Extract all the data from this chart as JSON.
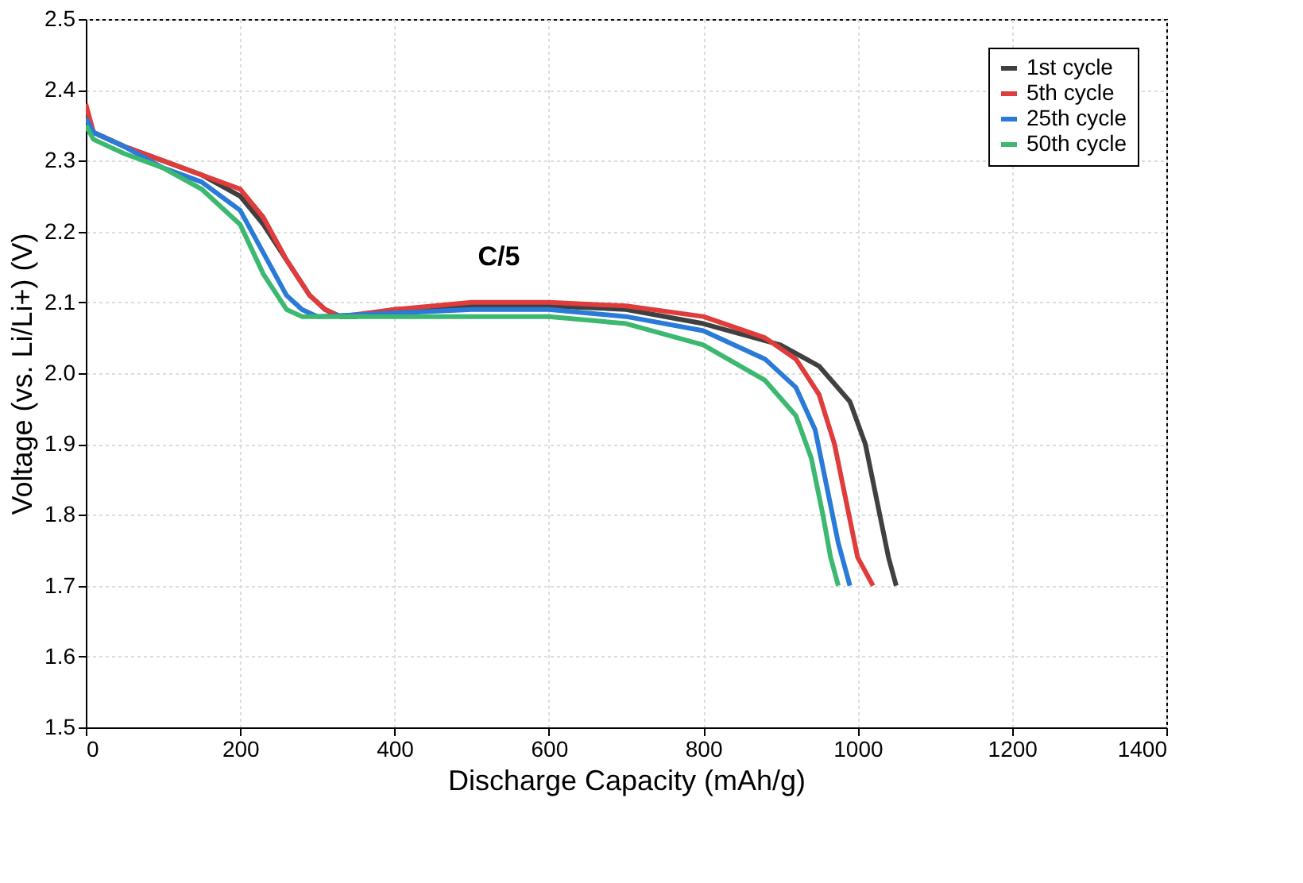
{
  "chart_data": {
    "type": "line",
    "xlabel": "Discharge Capacity (mAh/g)",
    "ylabel": "Voltage (vs. Li/Li+) (V)",
    "xlim": [
      0,
      1400
    ],
    "xticks": [
      0,
      200,
      400,
      600,
      800,
      1000,
      1200,
      1400
    ],
    "ylim": [
      1.5,
      2.5
    ],
    "yticks": [
      1.5,
      1.6,
      1.7,
      1.8,
      1.9,
      {
        "value": 2,
        "label": "2.0"
      },
      2.1,
      2.2,
      2.3,
      2.4,
      2.5
    ],
    "grid": true,
    "legend": "top right",
    "marker": "none",
    "line_style": "solid",
    "annotations": [
      "C/5"
    ],
    "series": [
      {
        "name": "1st cycle",
        "color": "#404040",
        "x": [
          0,
          10,
          50,
          100,
          150,
          200,
          230,
          260,
          290,
          310,
          330,
          350,
          400,
          500,
          600,
          700,
          800,
          900,
          950,
          990,
          1010,
          1025,
          1040,
          1050
        ],
        "values": [
          2.37,
          2.34,
          2.32,
          2.3,
          2.28,
          2.25,
          2.21,
          2.16,
          2.11,
          2.09,
          2.08,
          2.08,
          2.09,
          2.095,
          2.095,
          2.09,
          2.07,
          2.04,
          2.01,
          1.96,
          1.9,
          1.82,
          1.74,
          1.7
        ]
      },
      {
        "name": "5th cycle",
        "color": "#e03c3c",
        "x": [
          0,
          10,
          50,
          100,
          150,
          200,
          230,
          260,
          290,
          310,
          330,
          400,
          500,
          600,
          700,
          800,
          880,
          920,
          950,
          970,
          985,
          1000,
          1020
        ],
        "values": [
          2.38,
          2.34,
          2.32,
          2.3,
          2.28,
          2.26,
          2.22,
          2.16,
          2.11,
          2.09,
          2.08,
          2.09,
          2.1,
          2.1,
          2.095,
          2.08,
          2.05,
          2.02,
          1.97,
          1.9,
          1.82,
          1.74,
          1.7
        ]
      },
      {
        "name": "25th cycle",
        "color": "#2a7ad8",
        "x": [
          0,
          10,
          50,
          100,
          150,
          200,
          230,
          260,
          280,
          300,
          400,
          500,
          600,
          700,
          800,
          880,
          920,
          945,
          960,
          975,
          990
        ],
        "values": [
          2.36,
          2.34,
          2.32,
          2.29,
          2.27,
          2.23,
          2.17,
          2.11,
          2.09,
          2.08,
          2.085,
          2.09,
          2.09,
          2.08,
          2.06,
          2.02,
          1.98,
          1.92,
          1.84,
          1.76,
          1.7
        ]
      },
      {
        "name": "50th cycle",
        "color": "#3cb870",
        "x": [
          0,
          10,
          50,
          100,
          150,
          200,
          230,
          260,
          280,
          300,
          400,
          500,
          600,
          700,
          800,
          880,
          920,
          940,
          955,
          965,
          975
        ],
        "values": [
          2.35,
          2.33,
          2.31,
          2.29,
          2.26,
          2.21,
          2.14,
          2.09,
          2.08,
          2.08,
          2.08,
          2.08,
          2.08,
          2.07,
          2.04,
          1.99,
          1.94,
          1.88,
          1.8,
          1.74,
          1.7
        ]
      }
    ]
  }
}
